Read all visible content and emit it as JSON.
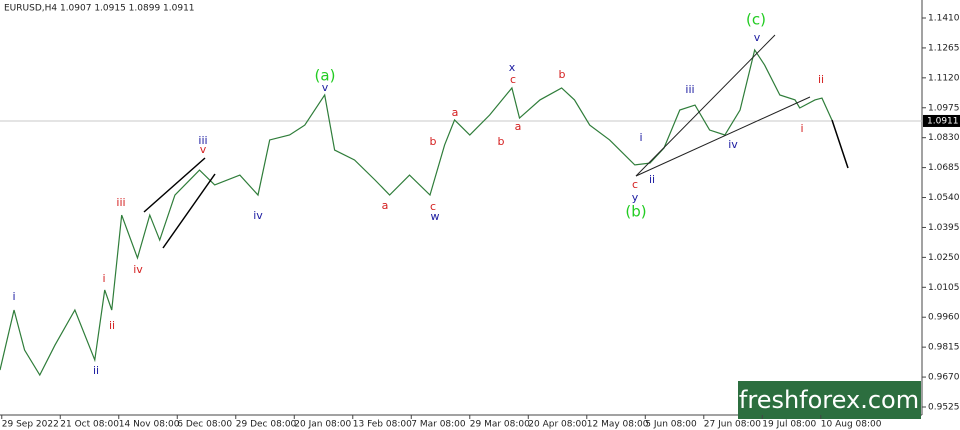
{
  "chart_data": {
    "type": "line",
    "header": "EURUSD,H4 1.0907 1.0915 1.0899 1.0911",
    "watermark": "freshforex.com",
    "current_price": {
      "value": 1.0911,
      "label": "1.0911"
    },
    "color": "#2f7d3a",
    "x": [
      -0.03,
      0.21,
      0.39,
      0.65,
      0.91,
      1.25,
      1.59,
      1.76,
      1.88,
      2.05,
      2.32,
      2.53,
      2.7,
      2.96,
      3.38,
      3.64,
      4.07,
      4.38,
      4.58,
      4.92,
      5.18,
      5.52,
      5.69,
      6.03,
      6.38,
      6.63,
      6.97,
      7.32,
      7.57,
      7.74,
      8.0,
      8.34,
      8.72,
      8.85,
      9.2,
      9.57,
      9.79,
      10.05,
      10.39,
      10.82,
      11.08,
      11.32,
      11.59,
      11.85,
      12.1,
      12.36,
      12.62,
      12.87,
      13.04,
      13.3,
      13.56,
      13.64,
      13.9,
      14.02,
      14.19
    ],
    "values": [
      0.9704,
      0.9995,
      0.9801,
      0.968,
      0.9825,
      0.9995,
      0.9753,
      1.0092,
      0.9995,
      1.0455,
      1.0247,
      1.0455,
      1.0334,
      1.0552,
      1.0673,
      1.0601,
      1.0649,
      1.0552,
      1.0819,
      1.0843,
      1.0891,
      1.1037,
      1.077,
      1.0722,
      1.0625,
      1.0552,
      1.0649,
      1.0552,
      1.0795,
      1.0916,
      1.0843,
      1.094,
      1.1071,
      1.0925,
      1.1013,
      1.1071,
      1.1013,
      1.0891,
      1.0819,
      1.0698,
      1.0707,
      1.078,
      1.0964,
      1.0988,
      1.0867,
      1.0843,
      1.0964,
      1.1255,
      1.1182,
      1.1037,
      1.1013,
      1.0974,
      1.1013,
      1.1022,
      1.0916
    ],
    "xlim": [
      -0.03,
      15.73
    ],
    "ylim": [
      0.94862,
      1.14972
    ],
    "xticks": [
      {
        "value": 0,
        "label": "29 Sep 2022"
      },
      {
        "value": 1,
        "label": "21 Oct 08:00"
      },
      {
        "value": 2,
        "label": "14 Nov 08:00"
      },
      {
        "value": 3,
        "label": "6 Dec 08:00"
      },
      {
        "value": 4,
        "label": "29 Dec 08:00"
      },
      {
        "value": 5,
        "label": "20 Jan 08:00"
      },
      {
        "value": 6,
        "label": "13 Feb 08:00"
      },
      {
        "value": 7,
        "label": "7 Mar 08:00"
      },
      {
        "value": 8,
        "label": "29 Mar 08:00"
      },
      {
        "value": 9,
        "label": "20 Apr 08:00"
      },
      {
        "value": 10,
        "label": "12 May 08:00"
      },
      {
        "value": 11,
        "label": "5 Jun 08:00"
      },
      {
        "value": 12,
        "label": "27 Jun 08:00"
      },
      {
        "value": 13,
        "label": "19 Jul 08:00"
      },
      {
        "value": 14,
        "label": "10 Aug 08:00"
      }
    ],
    "yticks": [
      {
        "value": 1.141,
        "label": "1.1410"
      },
      {
        "value": 1.1265,
        "label": "1.1265"
      },
      {
        "value": 1.112,
        "label": "1.1120"
      },
      {
        "value": 1.0975,
        "label": "1.0975"
      },
      {
        "value": 1.083,
        "label": "1.0830"
      },
      {
        "value": 1.0685,
        "label": "1.0685"
      },
      {
        "value": 1.054,
        "label": "1.0540"
      },
      {
        "value": 1.0395,
        "label": "1.0395"
      },
      {
        "value": 1.025,
        "label": "1.0250"
      },
      {
        "value": 1.0105,
        "label": "1.0105"
      },
      {
        "value": 0.996,
        "label": "0.9960"
      },
      {
        "value": 0.9815,
        "label": "0.9815"
      },
      {
        "value": 0.967,
        "label": "0.9670"
      },
      {
        "value": 0.9525,
        "label": "0.9525"
      }
    ],
    "annotations": [
      {
        "text": "i",
        "color": "#1a1aa0"
      },
      {
        "text": "ii",
        "color": "#1a1aa0"
      },
      {
        "text": "iii",
        "color": "#1a1aa0"
      },
      {
        "text": "iv",
        "color": "#1a1aa0"
      },
      {
        "text": "v",
        "color": "#1a1aa0"
      },
      {
        "text": "w",
        "color": "#1a1aa0"
      },
      {
        "text": "x",
        "color": "#1a1aa0"
      },
      {
        "text": "y",
        "color": "#1a1aa0"
      },
      {
        "text": "i",
        "color": "#1a1aa0"
      },
      {
        "text": "ii",
        "color": "#1a1aa0"
      },
      {
        "text": "iii",
        "color": "#1a1aa0"
      },
      {
        "text": "iv",
        "color": "#1a1aa0"
      },
      {
        "text": "v",
        "color": "#1a1aa0"
      },
      {
        "text": "i",
        "color": "#d42020"
      },
      {
        "text": "ii",
        "color": "#d42020"
      },
      {
        "text": "iii",
        "color": "#d42020"
      },
      {
        "text": "iv",
        "color": "#d42020"
      },
      {
        "text": "v",
        "color": "#d42020"
      },
      {
        "text": "a",
        "color": "#d42020"
      },
      {
        "text": "b",
        "color": "#d42020"
      },
      {
        "text": "c",
        "color": "#d42020"
      },
      {
        "text": "a",
        "color": "#d42020"
      },
      {
        "text": "b",
        "color": "#d42020"
      },
      {
        "text": "c",
        "color": "#d42020"
      },
      {
        "text": "a",
        "color": "#d42020"
      },
      {
        "text": "b",
        "color": "#d42020"
      },
      {
        "text": "c",
        "color": "#d42020"
      },
      {
        "text": "i",
        "color": "#d42020"
      },
      {
        "text": "ii",
        "color": "#d42020"
      },
      {
        "text": "(a)",
        "color": "#22cc22"
      },
      {
        "text": "(b)",
        "color": "#22cc22"
      },
      {
        "text": "(c)",
        "color": "#22cc22"
      }
    ]
  }
}
